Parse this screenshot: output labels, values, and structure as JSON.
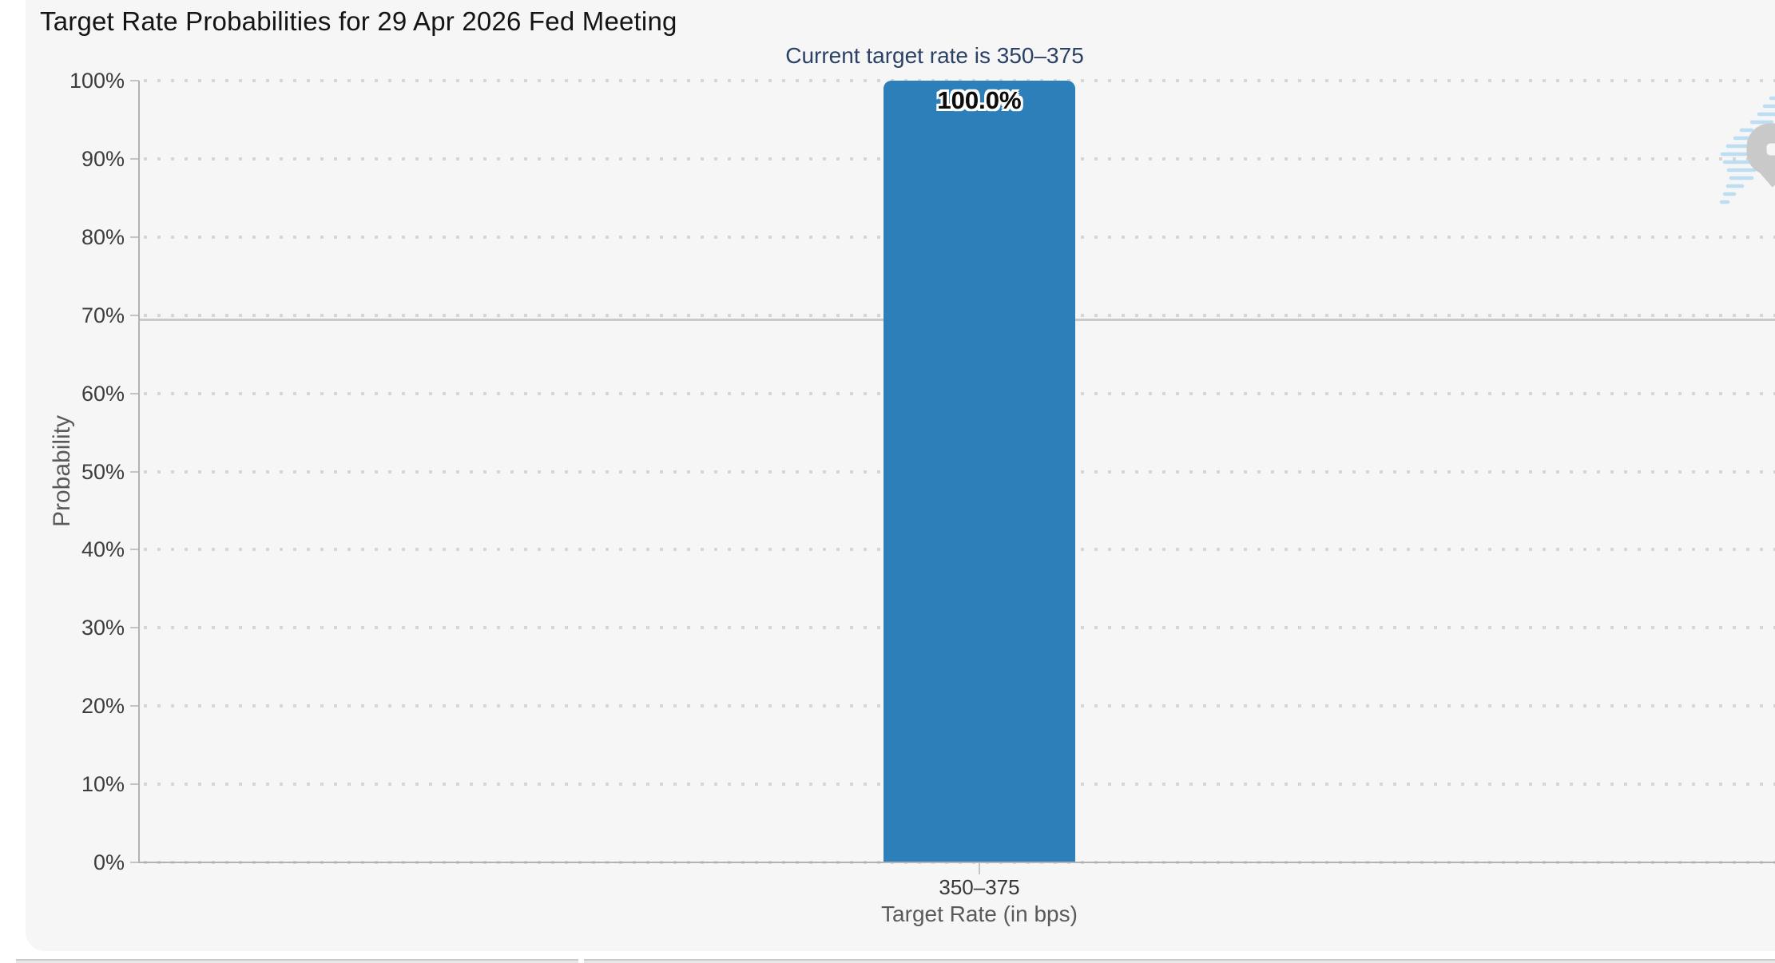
{
  "page": {
    "background_color": "#ffffff",
    "panel_color": "#f6f6f6"
  },
  "header": {
    "title": "Target Rate Probabilities for 29 Apr 2026 Fed Meeting",
    "subtitle": "Current target rate is 350–375",
    "subtitle_color": "#2b4166"
  },
  "chart_data": {
    "type": "bar",
    "title": "Target Rate Probabilities for 29 Apr 2026 Fed Meeting",
    "subtitle": "Current target rate is 350–375",
    "categories": [
      "350–375"
    ],
    "values": [
      100.0
    ],
    "value_labels": [
      "100.0%"
    ],
    "xlabel": "Target Rate (in bps)",
    "ylabel": "Probability",
    "ylim": [
      0,
      100
    ],
    "ytick_labels": [
      "0%",
      "10%",
      "20%",
      "30%",
      "40%",
      "50%",
      "60%",
      "70%",
      "80%",
      "90%",
      "100%"
    ],
    "grid": "dotted-horizontal",
    "legend": "none",
    "bar_color": "#2c7fb8"
  },
  "watermark": {
    "icon": "quikstrike-logo-watermark",
    "q_color": "#c9c9c9",
    "stripe_color": "#aed9f2"
  }
}
